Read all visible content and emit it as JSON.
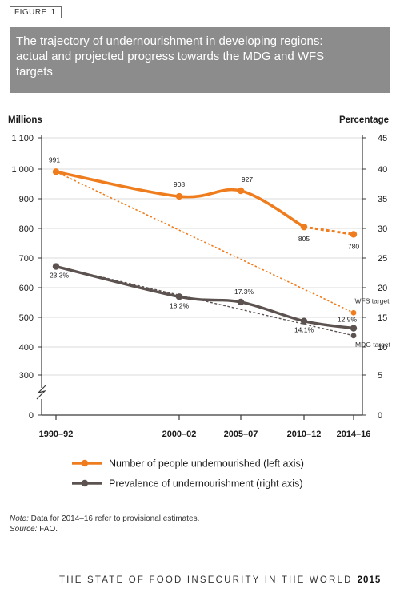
{
  "figure": {
    "tag_label": "FIGURE",
    "tag_number": "1"
  },
  "title": {
    "line1": "The trajectory of undernourishment in developing regions:",
    "line2": "actual and projected progress towards the MDG and WFS",
    "line3": "targets"
  },
  "colors": {
    "orange": "#ef7d1e",
    "gray": "#5c5351",
    "title_bg": "#8c8c8c",
    "axis": "#3a3a3a"
  },
  "chart_data": {
    "type": "line",
    "left_axis": {
      "label": "Millions",
      "ticks": [
        "1 100",
        "1 000",
        "900",
        "800",
        "700",
        "600",
        "500",
        "400",
        "300",
        "0"
      ]
    },
    "right_axis": {
      "label": "Percentage",
      "ticks": [
        "45",
        "40",
        "35",
        "30",
        "25",
        "20",
        "15",
        "10",
        "5",
        "0"
      ]
    },
    "x_ticks": [
      "1990–92",
      "2000–02",
      "2005–07",
      "2010–12",
      "2014–16"
    ],
    "series": [
      {
        "name": "Number of people undernourished (left axis)",
        "axis": "left",
        "x": [
          "1990–92",
          "2000–02",
          "2005–07",
          "2010–12",
          "2014–16"
        ],
        "values": [
          991,
          908,
          927,
          805,
          780
        ],
        "labels": [
          "991",
          "908",
          "927",
          "805",
          "780"
        ]
      },
      {
        "name": "Prevalence of undernourishment (right axis)",
        "axis": "right",
        "x": [
          "1990–92",
          "2000–02",
          "2005–07",
          "2010–12",
          "2014–16"
        ],
        "values": [
          23.3,
          18.2,
          17.3,
          14.1,
          12.9
        ],
        "labels": [
          "23.3%",
          "18.2%",
          "17.3%",
          "14.1%",
          "12.9%"
        ]
      }
    ],
    "targets": [
      {
        "name": "WFS target",
        "axis": "left",
        "from": 991,
        "to": 515.5
      },
      {
        "name": "MDG target",
        "axis": "right",
        "from": 23.3,
        "to": 11.65
      }
    ]
  },
  "note": {
    "note_label": "Note:",
    "note_text": " Data for 2014–16 refer to provisional estimates.",
    "source_label": "Source:",
    "source_text": " FAO."
  },
  "running_footer": {
    "text": "THE STATE OF FOOD INSECURITY IN THE WORLD",
    "year": "2015"
  }
}
